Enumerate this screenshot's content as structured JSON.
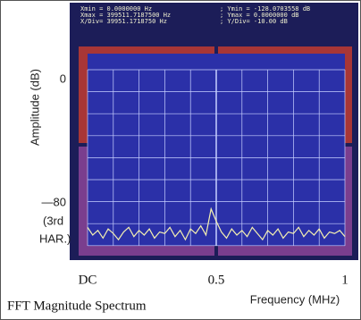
{
  "chart_data": {
    "type": "line",
    "title": "FFT Magnitude Spectrum",
    "xlabel": "Frequency (MHz)",
    "ylabel": "Amplitude (dB)",
    "screen_lines": [
      "Xmin =        0.0000000 Hz",
      "Xmax =   399511.7187500 Hz",
      "X/Div=    39951.1718750 Hz",
      "; Ymin =    -128.0703558 dB",
      "; Ymax =       0.0000000 dB",
      "; Y/Div= -10.00 dB"
    ],
    "annotation": [
      "(3rd",
      "HAR.)"
    ],
    "xlim": [
      0,
      1
    ],
    "xticks": [
      {
        "value": 0,
        "label": "DC"
      },
      0.5,
      1
    ],
    "ylim": [
      -108,
      17
    ],
    "yticks": [
      0,
      {
        "value": -80,
        "label": "—80"
      }
    ],
    "series": [
      {
        "name": "Spectrum",
        "color": "#f4f0b0",
        "x": [
          0,
          0.02,
          0.04,
          0.06,
          0.08,
          0.1,
          0.12,
          0.14,
          0.16,
          0.18,
          0.2,
          0.22,
          0.24,
          0.26,
          0.28,
          0.3,
          0.32,
          0.34,
          0.36,
          0.38,
          0.4,
          0.42,
          0.44,
          0.46,
          0.48,
          0.5,
          0.52,
          0.54,
          0.56,
          0.58,
          0.6,
          0.62,
          0.64,
          0.66,
          0.68,
          0.7,
          0.72,
          0.74,
          0.76,
          0.78,
          0.8,
          0.82,
          0.84,
          0.86,
          0.88,
          0.9,
          0.92,
          0.94,
          0.96,
          0.98,
          1
        ],
        "values": [
          -96,
          -101,
          -98,
          -103,
          -97,
          -100,
          -104,
          -99,
          -96,
          -102,
          -98,
          -101,
          -97,
          -103,
          -99,
          -100,
          -96,
          -102,
          -98,
          -104,
          -97,
          -100,
          -95,
          -101,
          -84,
          -92,
          -99,
          -103,
          -97,
          -101,
          -98,
          -102,
          -96,
          -100,
          -104,
          -98,
          -101,
          -97,
          -103,
          -99,
          -100,
          -96,
          -102,
          -98,
          -101,
          -97,
          -103,
          -99,
          -100,
          -98,
          -102
        ]
      }
    ]
  }
}
